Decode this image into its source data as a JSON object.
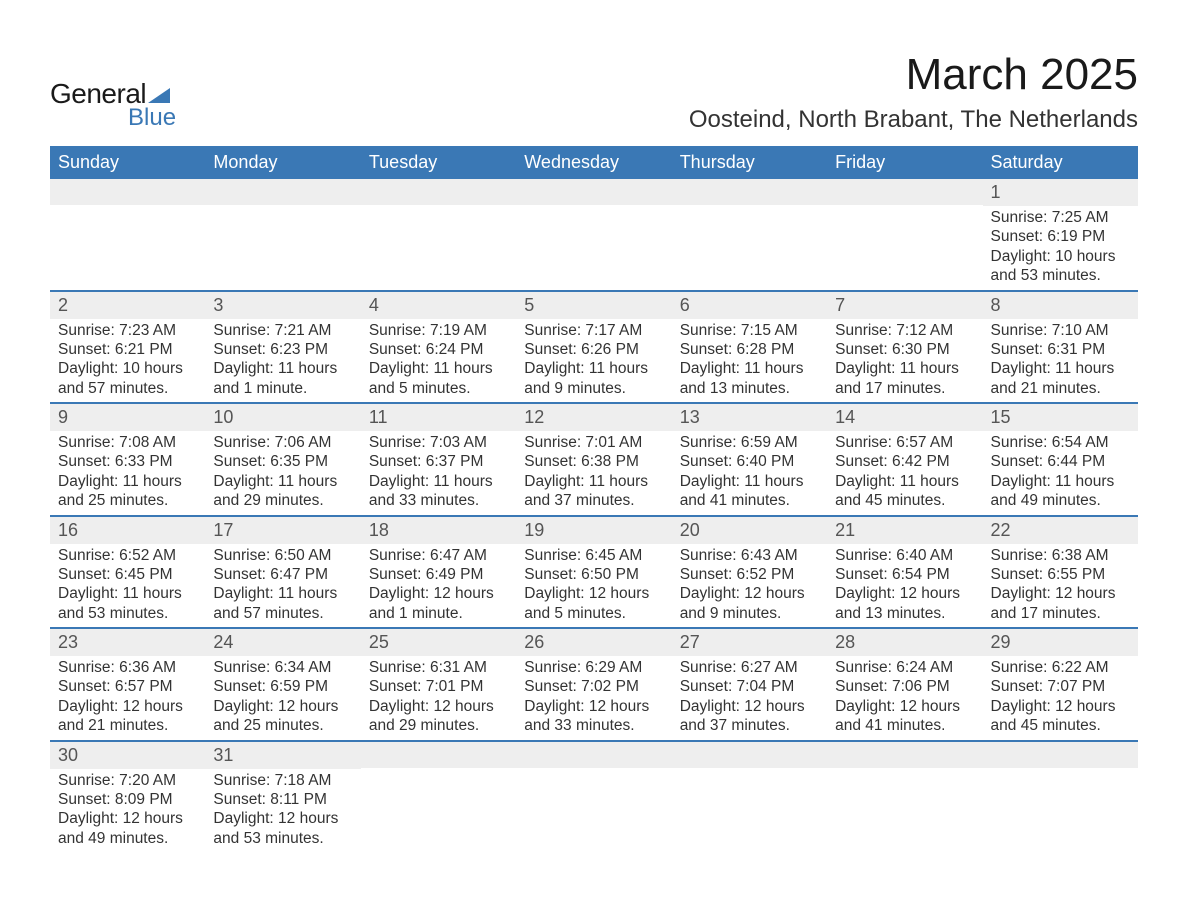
{
  "brand": {
    "line1": "General",
    "line2": "Blue",
    "accent_color": "#3a78b5"
  },
  "title": {
    "month": "March 2025",
    "location": "Oosteind, North Brabant, The Netherlands"
  },
  "colors": {
    "header_bg": "#3a78b5",
    "header_text": "#ffffff",
    "daynum_bg": "#eeeeee",
    "row_divider": "#3a78b5",
    "body_text": "#333333",
    "page_bg": "#ffffff"
  },
  "typography": {
    "month_title_pt": 44,
    "location_pt": 24,
    "weekday_header_pt": 18,
    "daynum_pt": 18,
    "cell_body_pt": 15.5
  },
  "weekdays": [
    "Sunday",
    "Monday",
    "Tuesday",
    "Wednesday",
    "Thursday",
    "Friday",
    "Saturday"
  ],
  "weeks": [
    [
      {
        "n": "",
        "sr": "",
        "ss": "",
        "dl": ""
      },
      {
        "n": "",
        "sr": "",
        "ss": "",
        "dl": ""
      },
      {
        "n": "",
        "sr": "",
        "ss": "",
        "dl": ""
      },
      {
        "n": "",
        "sr": "",
        "ss": "",
        "dl": ""
      },
      {
        "n": "",
        "sr": "",
        "ss": "",
        "dl": ""
      },
      {
        "n": "",
        "sr": "",
        "ss": "",
        "dl": ""
      },
      {
        "n": "1",
        "sr": "Sunrise: 7:25 AM",
        "ss": "Sunset: 6:19 PM",
        "dl": "Daylight: 10 hours and 53 minutes."
      }
    ],
    [
      {
        "n": "2",
        "sr": "Sunrise: 7:23 AM",
        "ss": "Sunset: 6:21 PM",
        "dl": "Daylight: 10 hours and 57 minutes."
      },
      {
        "n": "3",
        "sr": "Sunrise: 7:21 AM",
        "ss": "Sunset: 6:23 PM",
        "dl": "Daylight: 11 hours and 1 minute."
      },
      {
        "n": "4",
        "sr": "Sunrise: 7:19 AM",
        "ss": "Sunset: 6:24 PM",
        "dl": "Daylight: 11 hours and 5 minutes."
      },
      {
        "n": "5",
        "sr": "Sunrise: 7:17 AM",
        "ss": "Sunset: 6:26 PM",
        "dl": "Daylight: 11 hours and 9 minutes."
      },
      {
        "n": "6",
        "sr": "Sunrise: 7:15 AM",
        "ss": "Sunset: 6:28 PM",
        "dl": "Daylight: 11 hours and 13 minutes."
      },
      {
        "n": "7",
        "sr": "Sunrise: 7:12 AM",
        "ss": "Sunset: 6:30 PM",
        "dl": "Daylight: 11 hours and 17 minutes."
      },
      {
        "n": "8",
        "sr": "Sunrise: 7:10 AM",
        "ss": "Sunset: 6:31 PM",
        "dl": "Daylight: 11 hours and 21 minutes."
      }
    ],
    [
      {
        "n": "9",
        "sr": "Sunrise: 7:08 AM",
        "ss": "Sunset: 6:33 PM",
        "dl": "Daylight: 11 hours and 25 minutes."
      },
      {
        "n": "10",
        "sr": "Sunrise: 7:06 AM",
        "ss": "Sunset: 6:35 PM",
        "dl": "Daylight: 11 hours and 29 minutes."
      },
      {
        "n": "11",
        "sr": "Sunrise: 7:03 AM",
        "ss": "Sunset: 6:37 PM",
        "dl": "Daylight: 11 hours and 33 minutes."
      },
      {
        "n": "12",
        "sr": "Sunrise: 7:01 AM",
        "ss": "Sunset: 6:38 PM",
        "dl": "Daylight: 11 hours and 37 minutes."
      },
      {
        "n": "13",
        "sr": "Sunrise: 6:59 AM",
        "ss": "Sunset: 6:40 PM",
        "dl": "Daylight: 11 hours and 41 minutes."
      },
      {
        "n": "14",
        "sr": "Sunrise: 6:57 AM",
        "ss": "Sunset: 6:42 PM",
        "dl": "Daylight: 11 hours and 45 minutes."
      },
      {
        "n": "15",
        "sr": "Sunrise: 6:54 AM",
        "ss": "Sunset: 6:44 PM",
        "dl": "Daylight: 11 hours and 49 minutes."
      }
    ],
    [
      {
        "n": "16",
        "sr": "Sunrise: 6:52 AM",
        "ss": "Sunset: 6:45 PM",
        "dl": "Daylight: 11 hours and 53 minutes."
      },
      {
        "n": "17",
        "sr": "Sunrise: 6:50 AM",
        "ss": "Sunset: 6:47 PM",
        "dl": "Daylight: 11 hours and 57 minutes."
      },
      {
        "n": "18",
        "sr": "Sunrise: 6:47 AM",
        "ss": "Sunset: 6:49 PM",
        "dl": "Daylight: 12 hours and 1 minute."
      },
      {
        "n": "19",
        "sr": "Sunrise: 6:45 AM",
        "ss": "Sunset: 6:50 PM",
        "dl": "Daylight: 12 hours and 5 minutes."
      },
      {
        "n": "20",
        "sr": "Sunrise: 6:43 AM",
        "ss": "Sunset: 6:52 PM",
        "dl": "Daylight: 12 hours and 9 minutes."
      },
      {
        "n": "21",
        "sr": "Sunrise: 6:40 AM",
        "ss": "Sunset: 6:54 PM",
        "dl": "Daylight: 12 hours and 13 minutes."
      },
      {
        "n": "22",
        "sr": "Sunrise: 6:38 AM",
        "ss": "Sunset: 6:55 PM",
        "dl": "Daylight: 12 hours and 17 minutes."
      }
    ],
    [
      {
        "n": "23",
        "sr": "Sunrise: 6:36 AM",
        "ss": "Sunset: 6:57 PM",
        "dl": "Daylight: 12 hours and 21 minutes."
      },
      {
        "n": "24",
        "sr": "Sunrise: 6:34 AM",
        "ss": "Sunset: 6:59 PM",
        "dl": "Daylight: 12 hours and 25 minutes."
      },
      {
        "n": "25",
        "sr": "Sunrise: 6:31 AM",
        "ss": "Sunset: 7:01 PM",
        "dl": "Daylight: 12 hours and 29 minutes."
      },
      {
        "n": "26",
        "sr": "Sunrise: 6:29 AM",
        "ss": "Sunset: 7:02 PM",
        "dl": "Daylight: 12 hours and 33 minutes."
      },
      {
        "n": "27",
        "sr": "Sunrise: 6:27 AM",
        "ss": "Sunset: 7:04 PM",
        "dl": "Daylight: 12 hours and 37 minutes."
      },
      {
        "n": "28",
        "sr": "Sunrise: 6:24 AM",
        "ss": "Sunset: 7:06 PM",
        "dl": "Daylight: 12 hours and 41 minutes."
      },
      {
        "n": "29",
        "sr": "Sunrise: 6:22 AM",
        "ss": "Sunset: 7:07 PM",
        "dl": "Daylight: 12 hours and 45 minutes."
      }
    ],
    [
      {
        "n": "30",
        "sr": "Sunrise: 7:20 AM",
        "ss": "Sunset: 8:09 PM",
        "dl": "Daylight: 12 hours and 49 minutes."
      },
      {
        "n": "31",
        "sr": "Sunrise: 7:18 AM",
        "ss": "Sunset: 8:11 PM",
        "dl": "Daylight: 12 hours and 53 minutes."
      },
      {
        "n": "",
        "sr": "",
        "ss": "",
        "dl": ""
      },
      {
        "n": "",
        "sr": "",
        "ss": "",
        "dl": ""
      },
      {
        "n": "",
        "sr": "",
        "ss": "",
        "dl": ""
      },
      {
        "n": "",
        "sr": "",
        "ss": "",
        "dl": ""
      },
      {
        "n": "",
        "sr": "",
        "ss": "",
        "dl": ""
      }
    ]
  ]
}
